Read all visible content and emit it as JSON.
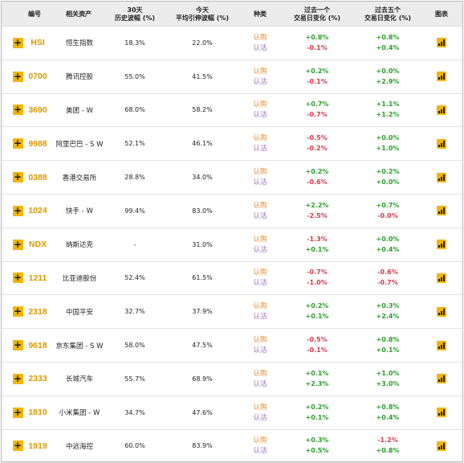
{
  "header": {
    "code": "编号",
    "asset": "相关资产",
    "hv_top": "30天",
    "hv_bottom": "历史波幅 (%)",
    "iv_top": "今天",
    "iv_bottom": "平均引伸波幅 (%)",
    "type": "种类",
    "d1_top": "过去一个",
    "d1_bottom": "交易日变化 (%)",
    "d5_top": "过去五个",
    "d5_bottom": "交易日变化 (%)",
    "chart": "图表"
  },
  "labels": {
    "buy": "认购",
    "sell": "认沽",
    "add": "+"
  },
  "colors": {
    "accent": "#f2b600",
    "code": "#d99a00",
    "buy": "#e28a2a",
    "sell": "#9b6bc6",
    "positive": "#2e9b2e",
    "negative": "#d33a4d"
  },
  "rows": [
    {
      "code": "HSI",
      "name": "恒生指数",
      "hv": "18.3%",
      "iv": "22.0%",
      "d1_call": "+0.8%",
      "d1_put": "-0.1%",
      "d5_call": "+0.8%",
      "d5_put": "+0.4%"
    },
    {
      "code": "0700",
      "name": "腾讯控股",
      "hv": "55.0%",
      "iv": "41.5%",
      "d1_call": "+0.2%",
      "d1_put": "-0.1%",
      "d5_call": "+0.0%",
      "d5_put": "+2.9%"
    },
    {
      "code": "3690",
      "name": "美团 - W",
      "hv": "68.0%",
      "iv": "58.2%",
      "d1_call": "+0.7%",
      "d1_put": "-0.7%",
      "d5_call": "+1.1%",
      "d5_put": "+1.2%"
    },
    {
      "code": "9988",
      "name": "阿里巴巴 - S W",
      "hv": "52.1%",
      "iv": "46.1%",
      "d1_call": "-0.5%",
      "d1_put": "-0.2%",
      "d5_call": "+0.0%",
      "d5_put": "+1.0%"
    },
    {
      "code": "0388",
      "name": "香港交易所",
      "hv": "28.8%",
      "iv": "34.0%",
      "d1_call": "+0.2%",
      "d1_put": "-0.6%",
      "d5_call": "+0.2%",
      "d5_put": "+0.0%"
    },
    {
      "code": "1024",
      "name": "快手 - W",
      "hv": "99.4%",
      "iv": "83.0%",
      "d1_call": "+2.2%",
      "d1_put": "-2.5%",
      "d5_call": "+0.7%",
      "d5_put": "-0.0%"
    },
    {
      "code": "NDX",
      "name": "纳斯达克",
      "hv": "-",
      "iv": "31.0%",
      "d1_call": "-1.3%",
      "d1_put": "+0.1%",
      "d5_call": "+0.0%",
      "d5_put": "+0.4%"
    },
    {
      "code": "1211",
      "name": "比亚迪股份",
      "hv": "52.4%",
      "iv": "61.5%",
      "d1_call": "-0.7%",
      "d1_put": "-1.0%",
      "d5_call": "-0.6%",
      "d5_put": "-0.7%"
    },
    {
      "code": "2318",
      "name": "中国平安",
      "hv": "32.7%",
      "iv": "37.9%",
      "d1_call": "+0.2%",
      "d1_put": "+0.1%",
      "d5_call": "+0.3%",
      "d5_put": "+2.4%"
    },
    {
      "code": "9618",
      "name": "京东集团 - S W",
      "hv": "58.0%",
      "iv": "47.5%",
      "d1_call": "-0.5%",
      "d1_put": "-0.1%",
      "d5_call": "+0.8%",
      "d5_put": "+0.1%"
    },
    {
      "code": "2333",
      "name": "长城汽车",
      "hv": "55.7%",
      "iv": "68.9%",
      "d1_call": "+0.1%",
      "d1_put": "+2.3%",
      "d5_call": "+1.0%",
      "d5_put": "+3.0%"
    },
    {
      "code": "1810",
      "name": "小米集团 - W",
      "hv": "34.7%",
      "iv": "47.6%",
      "d1_call": "+0.2%",
      "d1_put": "+0.1%",
      "d5_call": "+0.8%",
      "d5_put": "+0.4%"
    },
    {
      "code": "1919",
      "name": "中远海控",
      "hv": "60.0%",
      "iv": "83.9%",
      "d1_call": "+0.3%",
      "d1_put": "+0.5%",
      "d5_call": "-1.2%",
      "d5_put": "+0.8%"
    }
  ]
}
